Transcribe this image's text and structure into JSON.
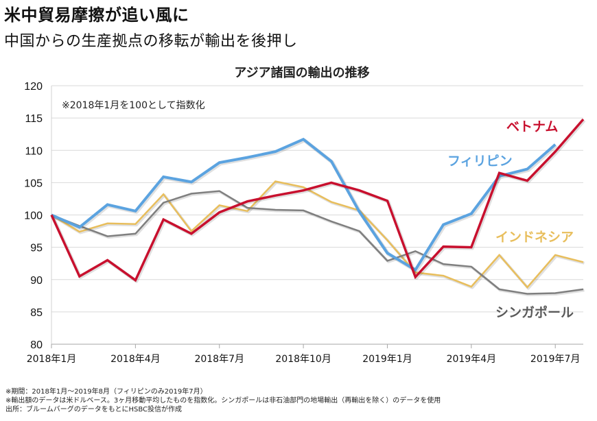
{
  "header": {
    "headline": "米中貿易摩擦が追い風に",
    "subheadline": "中国からの生産拠点の移転が輸出を後押し"
  },
  "chart_data": {
    "type": "line",
    "title": "アジア諸国の輸出の推移",
    "annotation": "※2018年1月を100として指数化",
    "xlabel": "",
    "ylabel": "",
    "ylim": [
      80,
      120
    ],
    "yticks": [
      80,
      85,
      90,
      95,
      100,
      105,
      110,
      115,
      120
    ],
    "grid": true,
    "x": [
      "2018-01",
      "2018-02",
      "2018-03",
      "2018-04",
      "2018-05",
      "2018-06",
      "2018-07",
      "2018-08",
      "2018-09",
      "2018-10",
      "2018-11",
      "2018-12",
      "2019-01",
      "2019-02",
      "2019-03",
      "2019-04",
      "2019-05",
      "2019-06",
      "2019-07",
      "2019-08"
    ],
    "xtick_labels": [
      {
        "index": 0,
        "label": "2018年1月"
      },
      {
        "index": 3,
        "label": "2018年4月"
      },
      {
        "index": 6,
        "label": "2018年7月"
      },
      {
        "index": 9,
        "label": "2018年10月"
      },
      {
        "index": 12,
        "label": "2019年1月"
      },
      {
        "index": 15,
        "label": "2019年4月"
      },
      {
        "index": 18,
        "label": "2019年7月"
      }
    ],
    "series": [
      {
        "name": "インドネシア",
        "color": "#E8BE5C",
        "values": [
          100,
          97.4,
          98.7,
          98.6,
          103.2,
          97.5,
          101.5,
          100.6,
          105.2,
          104.3,
          102.0,
          100.7,
          96.1,
          91.1,
          90.6,
          88.9,
          93.8,
          88.8,
          93.8,
          92.7
        ]
      },
      {
        "name": "シンガポール",
        "color": "#7F7F7F",
        "values": [
          100,
          98.3,
          96.7,
          97.1,
          101.9,
          103.3,
          103.7,
          101.1,
          100.8,
          100.7,
          99.0,
          97.5,
          92.9,
          94.4,
          92.4,
          92.0,
          88.5,
          87.8,
          87.9,
          88.5
        ]
      },
      {
        "name": "フィリピン",
        "color": "#5BA3E0",
        "values": [
          100,
          98.1,
          101.6,
          100.6,
          105.9,
          105.1,
          108.1,
          108.9,
          109.8,
          111.7,
          108.3,
          100.5,
          94.1,
          91.5,
          98.5,
          100.2,
          106.0,
          107.1,
          110.9,
          null
        ]
      },
      {
        "name": "ベトナム",
        "color": "#C8102E",
        "values": [
          100,
          90.5,
          93.0,
          89.9,
          99.3,
          97.1,
          100.4,
          102.1,
          103.0,
          103.8,
          105.0,
          103.8,
          102.2,
          90.4,
          95.1,
          95.0,
          106.5,
          105.3,
          109.8,
          114.8
        ]
      }
    ],
    "legend": [
      {
        "name": "ベトナム",
        "color": "#C8102E",
        "placement": "top-right"
      },
      {
        "name": "フィリピン",
        "color": "#5BA3E0",
        "placement": "upper-right"
      },
      {
        "name": "インドネシア",
        "color": "#E8BE5C",
        "placement": "middle-right"
      },
      {
        "name": "シンガポール",
        "color": "#595959",
        "placement": "bottom-right"
      }
    ]
  },
  "notes": [
    "※期間：2018年1月～2019年8月（フィリピンのみ2019年7月）",
    "※輸出額のデータは米ドルベース。3ヶ月移動平均したものを指数化。シンガポールは非石油部門の地場輸出（再輸出を除く）のデータを使用",
    "出所：ブルームバーグのデータをもとにHSBC投信が作成"
  ]
}
